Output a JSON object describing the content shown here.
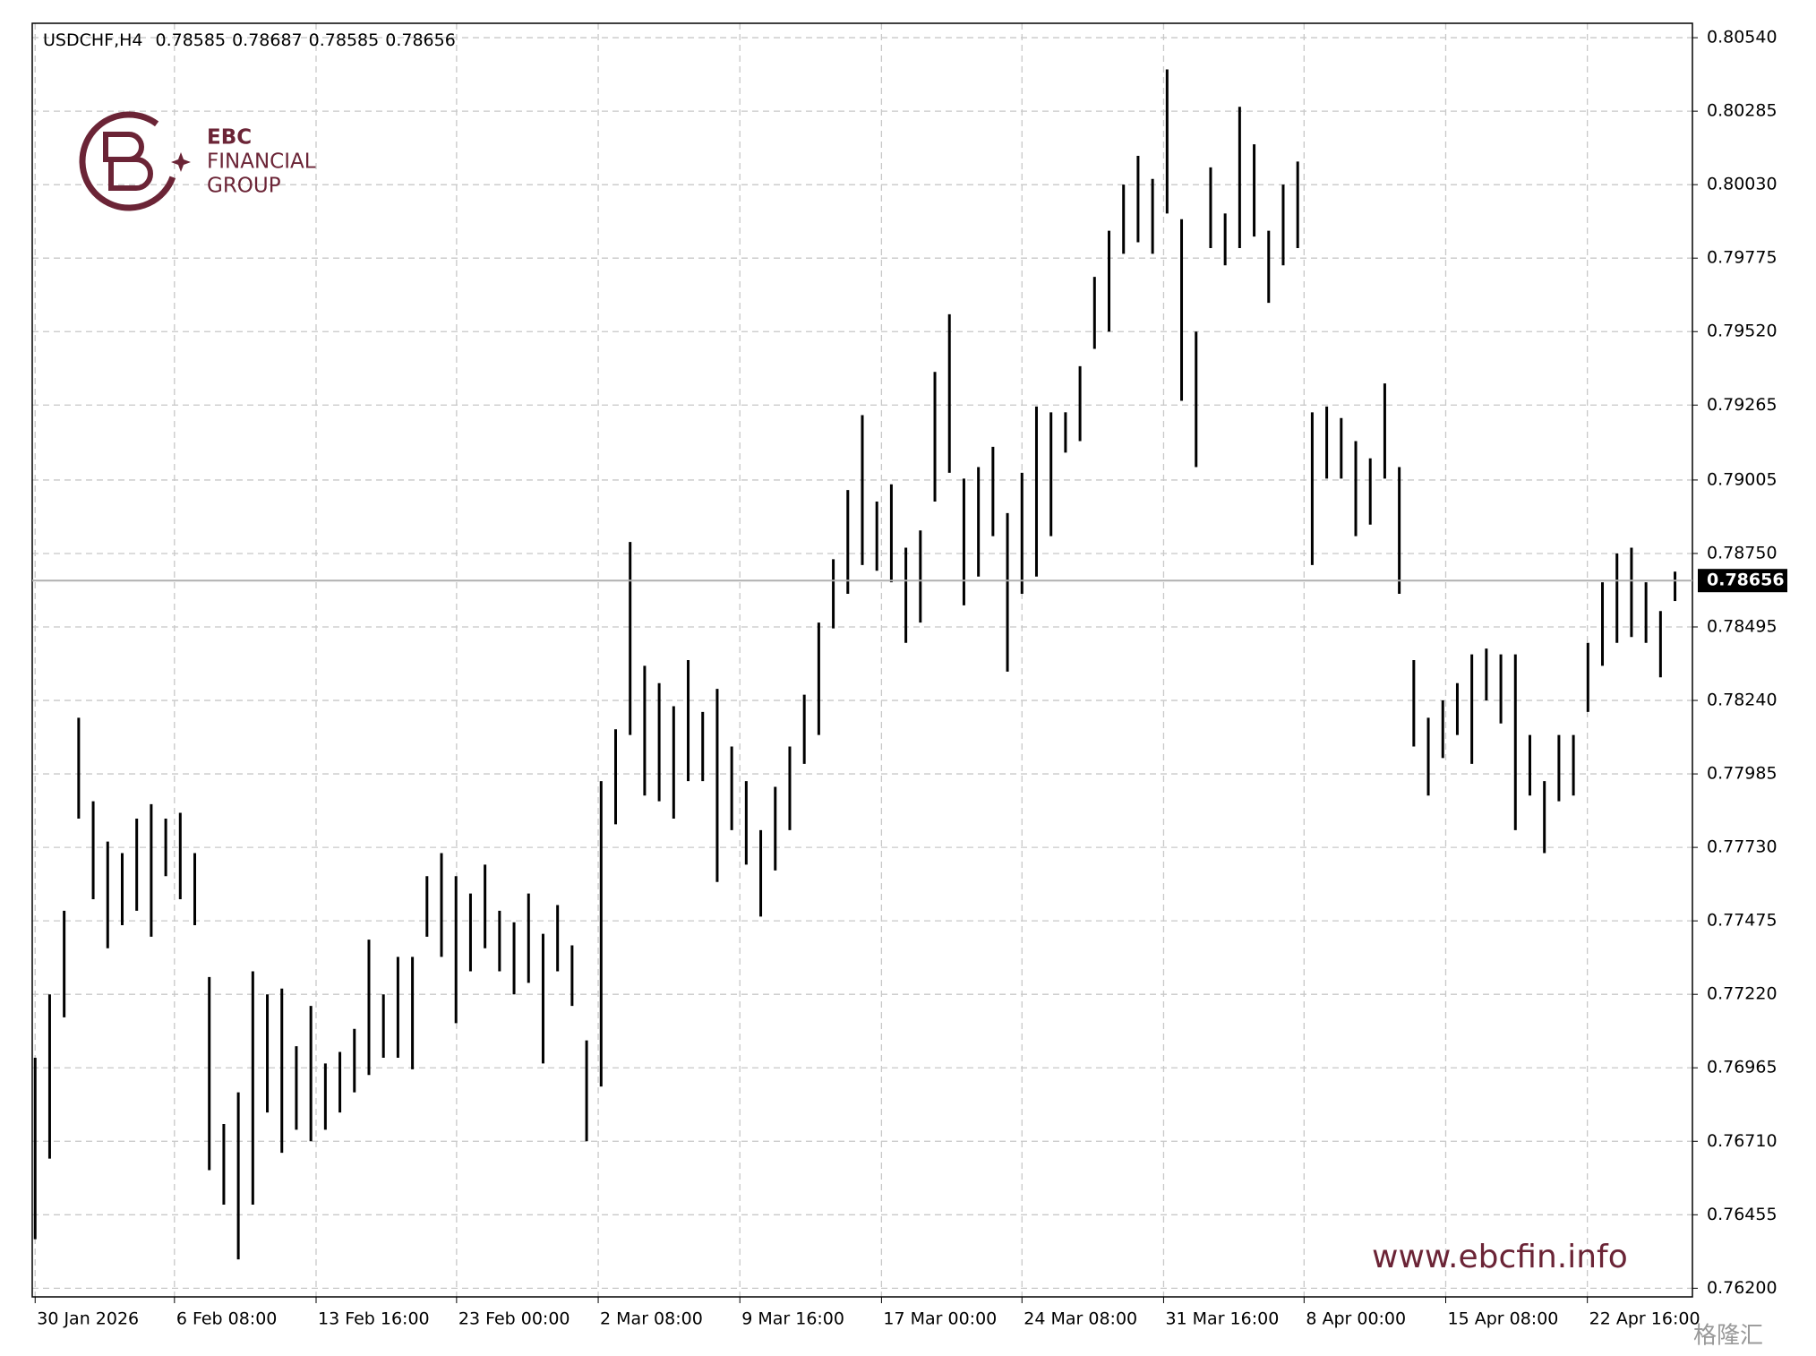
{
  "chart_data": {
    "type": "ohlc",
    "symbol": "USDCHF,H4",
    "header_values": [
      0.78585,
      0.78687,
      0.78585,
      0.78656
    ],
    "last_price": 0.78656,
    "ylim": [
      0.7617,
      0.8059
    ],
    "yticks": [
      {
        "value": 0.8054,
        "label": "0.80540"
      },
      0.80285,
      {
        "value": 0.8003,
        "label": "0.80030"
      },
      0.79775,
      {
        "value": 0.7952,
        "label": "0.79520"
      },
      0.79265,
      0.79005,
      {
        "value": 0.7875,
        "label": "0.78750"
      },
      0.78495,
      {
        "value": 0.7824,
        "label": "0.78240"
      },
      0.77985,
      {
        "value": 0.7773,
        "label": "0.77730"
      },
      0.77475,
      {
        "value": 0.7722,
        "label": "0.77220"
      },
      0.76965,
      {
        "value": 0.7671,
        "label": "0.76710"
      },
      0.76455,
      {
        "value": 0.762,
        "label": "0.76200"
      }
    ],
    "xlim": [
      -0.2,
      114.2
    ],
    "xticks": [
      {
        "value": 0,
        "label": "30 Jan 2026"
      },
      {
        "value": 9.6,
        "label": "6 Feb 08:00"
      },
      {
        "value": 19.36,
        "label": "13 Feb 16:00"
      },
      {
        "value": 29.04,
        "label": "23 Feb 00:00"
      },
      {
        "value": 38.8,
        "label": "2 Mar 08:00"
      },
      {
        "value": 48.56,
        "label": "9 Mar 16:00"
      },
      {
        "value": 58.32,
        "label": "17 Mar 00:00"
      },
      {
        "value": 68,
        "label": "24 Mar 08:00"
      },
      {
        "value": 77.76,
        "label": "31 Mar 16:00"
      },
      {
        "value": 87.44,
        "label": "8 Apr 00:00"
      },
      {
        "value": 97.2,
        "label": "15 Apr 08:00"
      },
      {
        "value": 106.96,
        "label": "22 Apr 16:00"
      }
    ],
    "grid": true,
    "color": "#000000",
    "high": [
      0.77,
      0.7722,
      0.7751,
      0.7818,
      0.7789,
      0.7775,
      0.7771,
      0.7783,
      0.7788,
      0.7783,
      0.7785,
      0.7771,
      0.7728,
      0.7677,
      0.7688,
      0.773,
      0.7722,
      0.7724,
      0.7704,
      0.7718,
      0.7698,
      0.7702,
      0.771,
      0.7741,
      0.7722,
      0.7735,
      0.7735,
      0.7763,
      0.7771,
      0.7763,
      0.7757,
      0.7767,
      0.7751,
      0.7747,
      0.7757,
      0.7743,
      0.7753,
      0.7739,
      0.7706,
      0.7796,
      0.7814,
      0.7879,
      0.7836,
      0.783,
      0.7822,
      0.7838,
      0.782,
      0.7828,
      0.7808,
      0.7796,
      0.7779,
      0.7794,
      0.7808,
      0.7826,
      0.7851,
      0.7873,
      0.7897,
      0.7923,
      0.7893,
      0.7899,
      0.7877,
      0.7883,
      0.7938,
      0.7958,
      0.7901,
      0.7905,
      0.7912,
      0.7889,
      0.7903,
      0.7926,
      0.7924,
      0.7924,
      0.794,
      0.7971,
      0.7987,
      0.8003,
      0.8013,
      0.8005,
      0.8043,
      0.7991,
      0.7952,
      0.8009,
      0.7993,
      0.803,
      0.8017,
      0.7987,
      0.8003,
      0.8011,
      0.7924,
      0.7926,
      0.7922,
      0.7914,
      0.7908,
      0.7934,
      0.7905,
      0.7838,
      0.7818,
      0.7824,
      0.783,
      0.784,
      0.7842,
      0.784,
      0.784,
      0.7812,
      0.7796,
      0.7812,
      0.7812,
      0.7844,
      0.7865,
      0.7875,
      0.7877,
      0.7865,
      0.7855,
      0.78687
    ],
    "low": [
      0.7637,
      0.7665,
      0.7714,
      0.7783,
      0.7755,
      0.7738,
      0.7746,
      0.7751,
      0.7742,
      0.7763,
      0.7755,
      0.7746,
      0.7661,
      0.7649,
      0.763,
      0.7649,
      0.7681,
      0.7667,
      0.7675,
      0.7671,
      0.7675,
      0.7681,
      0.7688,
      0.7694,
      0.77,
      0.77,
      0.7696,
      0.7742,
      0.7735,
      0.7712,
      0.773,
      0.7738,
      0.773,
      0.7722,
      0.7726,
      0.7698,
      0.773,
      0.7718,
      0.7671,
      0.769,
      0.7781,
      0.7812,
      0.7791,
      0.7789,
      0.7783,
      0.7796,
      0.7796,
      0.7761,
      0.7779,
      0.7767,
      0.7749,
      0.7765,
      0.7779,
      0.7802,
      0.7812,
      0.7849,
      0.7861,
      0.7871,
      0.7869,
      0.7865,
      0.7844,
      0.7851,
      0.7893,
      0.7903,
      0.7857,
      0.7867,
      0.7881,
      0.7834,
      0.7861,
      0.7867,
      0.7881,
      0.791,
      0.7914,
      0.7946,
      0.7952,
      0.7979,
      0.7983,
      0.7979,
      0.7993,
      0.7928,
      0.7905,
      0.7981,
      0.7975,
      0.7981,
      0.7985,
      0.7962,
      0.7975,
      0.7981,
      0.7871,
      0.7901,
      0.7901,
      0.7881,
      0.7885,
      0.7901,
      0.7861,
      0.7808,
      0.7791,
      0.7804,
      0.7812,
      0.7802,
      0.7824,
      0.7816,
      0.7779,
      0.7791,
      0.7771,
      0.7789,
      0.7791,
      0.782,
      0.7836,
      0.7844,
      0.7846,
      0.7844,
      0.7832,
      0.78585
    ]
  },
  "logo": {
    "line1": "EBC",
    "line2": "FINANCIAL",
    "line3": "GROUP"
  },
  "website": "www.ebcfin.info",
  "corner_mark": "格隆汇"
}
